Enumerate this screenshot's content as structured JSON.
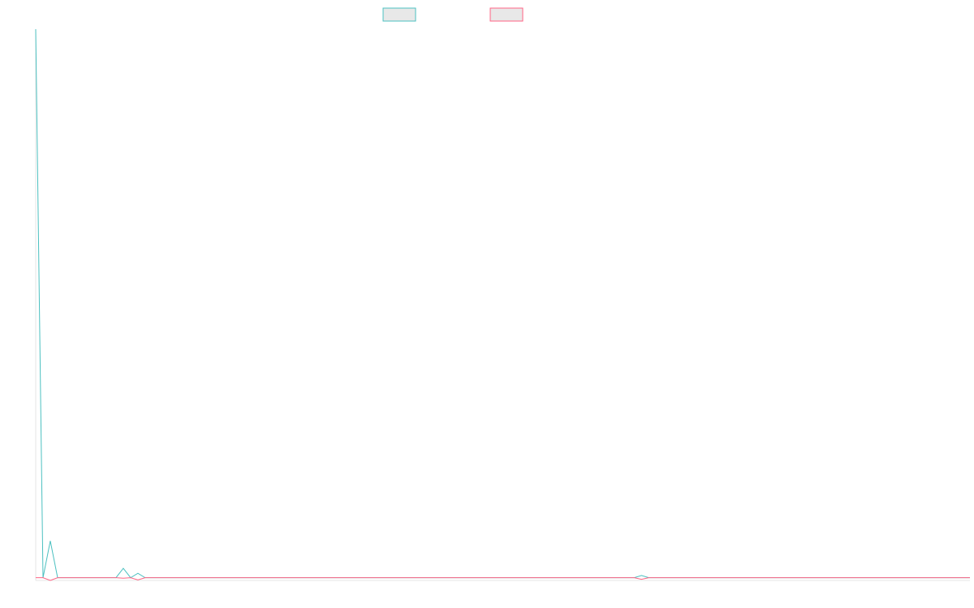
{
  "chart_data": {
    "type": "line",
    "ylim": [
      -0.5,
      100
    ],
    "series": [
      {
        "color": "#4bc0c0",
        "values": [
          100,
          0,
          6.7,
          0,
          0,
          0,
          0,
          0,
          0,
          0,
          0,
          0,
          1.7,
          0,
          0.8,
          0,
          0,
          0,
          0,
          0,
          0,
          0,
          0,
          0,
          0,
          0,
          0,
          0,
          0,
          0,
          0,
          0,
          0,
          0,
          0,
          0,
          0,
          0,
          0,
          0,
          0,
          0,
          0,
          0,
          0,
          0,
          0,
          0,
          0,
          0,
          0,
          0,
          0,
          0,
          0,
          0,
          0,
          0,
          0,
          0,
          0,
          0,
          0,
          0,
          0,
          0,
          0,
          0,
          0,
          0,
          0,
          0,
          0,
          0,
          0,
          0,
          0,
          0,
          0,
          0,
          0,
          0,
          0,
          0.4,
          0,
          0,
          0,
          0,
          0,
          0,
          0,
          0,
          0,
          0,
          0,
          0,
          0,
          0,
          0,
          0,
          0,
          0,
          0,
          0,
          0,
          0,
          0,
          0,
          0,
          0,
          0,
          0,
          0,
          0,
          0,
          0,
          0,
          0,
          0,
          0,
          0,
          0,
          0,
          0,
          0,
          0,
          0,
          0,
          0
        ]
      },
      {
        "color": "#ff6384",
        "values": [
          0,
          0,
          -0.5,
          0,
          0,
          0,
          0,
          0,
          0,
          0,
          0,
          0,
          -0.1,
          0,
          -0.4,
          0,
          0,
          0,
          0,
          0,
          0,
          0,
          0,
          0,
          0,
          0,
          0,
          0,
          0,
          0,
          0,
          0,
          0,
          0,
          0,
          0,
          0,
          0,
          0,
          0,
          0,
          0,
          0,
          0,
          0,
          0,
          0,
          0,
          0,
          0,
          0,
          0,
          0,
          0,
          0,
          0,
          0,
          0,
          0,
          0,
          0,
          0,
          0,
          0,
          0,
          0,
          0,
          0,
          0,
          0,
          0,
          0,
          0,
          0,
          0,
          0,
          0,
          0,
          0,
          0,
          0,
          0,
          0,
          -0.3,
          0,
          0,
          0,
          0,
          0,
          0,
          0,
          0,
          0,
          0,
          0,
          0,
          0,
          0,
          0,
          0,
          0,
          0,
          0,
          0,
          0,
          0,
          0,
          0,
          0,
          0,
          0,
          0,
          0,
          0,
          0,
          0,
          0,
          0,
          0,
          0,
          0,
          0,
          0,
          0,
          0,
          0,
          0,
          0,
          0
        ]
      }
    ]
  }
}
